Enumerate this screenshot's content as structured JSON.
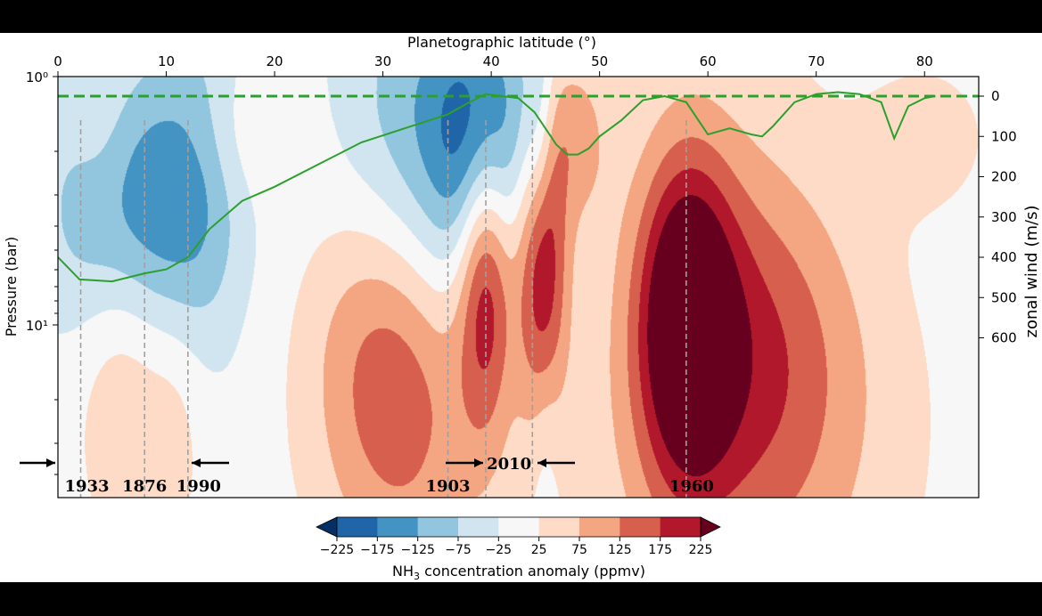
{
  "chart_data": {
    "type": "heatmap",
    "title": "",
    "xlabel": "Planetographic latitude (°)",
    "ylabel": "Pressure (bar)",
    "y2label": "zonal wind (m/s)",
    "xlim": [
      0,
      85
    ],
    "xticks": [
      0,
      10,
      20,
      30,
      40,
      50,
      60,
      70,
      80
    ],
    "ylim_log": [
      1,
      50
    ],
    "ytick_labels": [
      "10⁰",
      "10¹"
    ],
    "ytick_values": [
      1,
      10
    ],
    "y2ticks": [
      0,
      100,
      200,
      300,
      400,
      500,
      600
    ],
    "colorbar": {
      "label_main": "NH",
      "label_sub": "3",
      "label_rest": " concentration anomaly (ppmv)",
      "levels": [
        -225,
        -175,
        -125,
        -75,
        -25,
        25,
        75,
        125,
        175,
        225
      ],
      "level_labels": [
        "−225",
        "−175",
        "−125",
        "−75",
        "−25",
        "25",
        "75",
        "125",
        "175",
        "225"
      ],
      "colors": [
        "#053061",
        "#1f65a8",
        "#4393c3",
        "#92c5de",
        "#d1e5f0",
        "#f7f7f7",
        "#fddbc7",
        "#f4a582",
        "#d6604d",
        "#b2182b",
        "#67001f"
      ]
    },
    "anomaly_blobs": [
      {
        "lat": 7,
        "p": 3.4,
        "wx": 5.5,
        "wy": 0.4,
        "amp": -180
      },
      {
        "lat": 13,
        "p": 2.1,
        "wx": 3,
        "wy": 0.6,
        "amp": -60
      },
      {
        "lat": 34,
        "p": 2.4,
        "wx": 6,
        "wy": 0.55,
        "amp": -175
      },
      {
        "lat": 39.5,
        "p": 1.8,
        "wx": 3,
        "wy": 0.35,
        "amp": -170
      },
      {
        "lat": 44.5,
        "p": 1.8,
        "wx": 1,
        "wy": 0.35,
        "amp": -100
      },
      {
        "lat": 66,
        "p": 2.7,
        "wx": 9,
        "wy": 0.5,
        "amp": -70
      },
      {
        "lat": 45,
        "p": 28,
        "wx": 1,
        "wy": 0.35,
        "amp": -40
      },
      {
        "lat": 39.5,
        "p": 5.5,
        "wx": 1.8,
        "wy": 0.45,
        "amp": 240
      },
      {
        "lat": 44.7,
        "p": 5.0,
        "wx": 1.6,
        "wy": 0.45,
        "amp": 250
      },
      {
        "lat": 30,
        "p": 12,
        "wx": 5,
        "wy": 0.55,
        "amp": 150
      },
      {
        "lat": 34,
        "p": 18,
        "wx": 5,
        "wy": 0.65,
        "amp": 70
      },
      {
        "lat": 58,
        "p": 9.5,
        "wx": 3,
        "wy": 0.45,
        "amp": 260
      },
      {
        "lat": 64,
        "p": 9.5,
        "wx": 7,
        "wy": 0.65,
        "amp": 150
      },
      {
        "lat": 63,
        "p": 15,
        "wx": 11,
        "wy": 1.0,
        "amp": 75
      },
      {
        "lat": 6,
        "p": 13,
        "wx": 3,
        "wy": 0.5,
        "amp": 85
      },
      {
        "lat": 11,
        "p": 22,
        "wx": 2,
        "wy": 0.4,
        "amp": 45
      },
      {
        "lat": 4,
        "p": 1.7,
        "wx": 2,
        "wy": 0.25,
        "amp": 40
      },
      {
        "lat": 17,
        "p": 1.7,
        "wx": 4,
        "wy": 0.2,
        "amp": 40
      },
      {
        "lat": 48,
        "p": 1.75,
        "wx": 2,
        "wy": 0.25,
        "amp": 90
      },
      {
        "lat": 80,
        "p": 1.75,
        "wx": 5,
        "wy": 0.25,
        "amp": 40
      }
    ],
    "wind_profile": {
      "lat": [
        0,
        2,
        5,
        8,
        10,
        12,
        14,
        17,
        20,
        24,
        28,
        32,
        36,
        38,
        39.5,
        41,
        42.5,
        44,
        45,
        46,
        47,
        48,
        49,
        50,
        52,
        54,
        56,
        58,
        60,
        62,
        64,
        65,
        66,
        68,
        70,
        72,
        74,
        76,
        77.2,
        78.5,
        80,
        81
      ],
      "wind": [
        400,
        455,
        460,
        440,
        430,
        400,
        330,
        260,
        225,
        170,
        115,
        80,
        45,
        15,
        -5,
        0,
        5,
        40,
        80,
        120,
        145,
        145,
        130,
        100,
        60,
        10,
        0,
        15,
        95,
        80,
        95,
        100,
        75,
        15,
        -5,
        -10,
        -5,
        15,
        105,
        25,
        5,
        0
      ]
    },
    "wind_zero_ref": 0,
    "storm_years": [
      {
        "label": "1933",
        "lat": 2.1
      },
      {
        "label": "1876",
        "lat": 8.0
      },
      {
        "label": "1990",
        "lat": 12.0
      },
      {
        "label": "1903",
        "lat": 36.0
      },
      {
        "label": "2010",
        "lat": 39.5
      },
      {
        "label": "",
        "lat": 43.8
      },
      {
        "label": "1960",
        "lat": 58.0
      }
    ],
    "colors": {
      "wind_line": "#2ca02c",
      "guide_line": "#a0a0a0",
      "background": "#f7f7f7"
    }
  }
}
